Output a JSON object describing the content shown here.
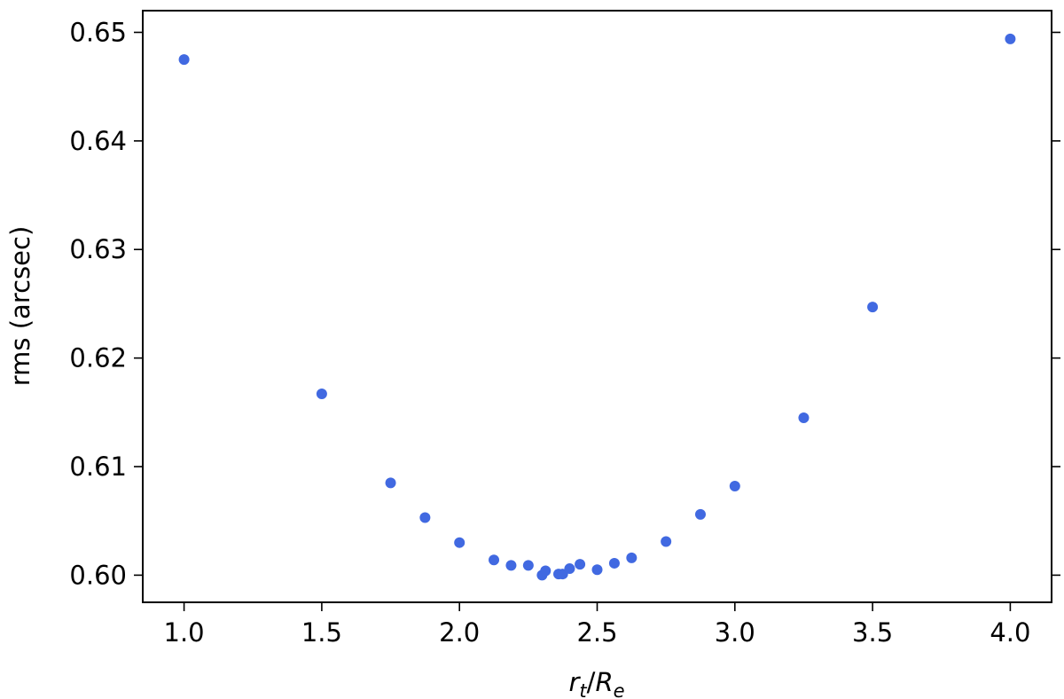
{
  "chart_data": {
    "type": "scatter",
    "title": "",
    "xlabel": {
      "main": "r",
      "sub": "t",
      "sep": "/",
      "main2": "R",
      "sub2": "e"
    },
    "ylabel": "rms (arcsec)",
    "xlim": [
      0.85,
      4.15
    ],
    "ylim": [
      0.5975,
      0.652
    ],
    "xticks": [
      1.0,
      1.5,
      2.0,
      2.5,
      3.0,
      3.5,
      4.0
    ],
    "xtick_labels": [
      "1.0",
      "1.5",
      "2.0",
      "2.5",
      "3.0",
      "3.5",
      "4.0"
    ],
    "yticks": [
      0.6,
      0.61,
      0.62,
      0.63,
      0.64,
      0.65
    ],
    "ytick_labels": [
      "0.60",
      "0.61",
      "0.62",
      "0.63",
      "0.64",
      "0.65"
    ],
    "grid": false,
    "color": "#4169e1",
    "points": [
      {
        "x": 1.0,
        "y": 0.6475
      },
      {
        "x": 1.5,
        "y": 0.6167
      },
      {
        "x": 1.75,
        "y": 0.6085
      },
      {
        "x": 1.875,
        "y": 0.6053
      },
      {
        "x": 2.0,
        "y": 0.603
      },
      {
        "x": 2.125,
        "y": 0.6014
      },
      {
        "x": 2.1875,
        "y": 0.6009
      },
      {
        "x": 2.25,
        "y": 0.6009
      },
      {
        "x": 2.3,
        "y": 0.6
      },
      {
        "x": 2.3125,
        "y": 0.6004
      },
      {
        "x": 2.36,
        "y": 0.6001
      },
      {
        "x": 2.375,
        "y": 0.6001
      },
      {
        "x": 2.4,
        "y": 0.6006
      },
      {
        "x": 2.4375,
        "y": 0.601
      },
      {
        "x": 2.5,
        "y": 0.6005
      },
      {
        "x": 2.5625,
        "y": 0.6011
      },
      {
        "x": 2.625,
        "y": 0.6016
      },
      {
        "x": 2.75,
        "y": 0.6031
      },
      {
        "x": 2.875,
        "y": 0.6056
      },
      {
        "x": 3.0,
        "y": 0.6082
      },
      {
        "x": 3.25,
        "y": 0.6145
      },
      {
        "x": 3.5,
        "y": 0.6247
      },
      {
        "x": 4.0,
        "y": 0.6494
      }
    ]
  }
}
